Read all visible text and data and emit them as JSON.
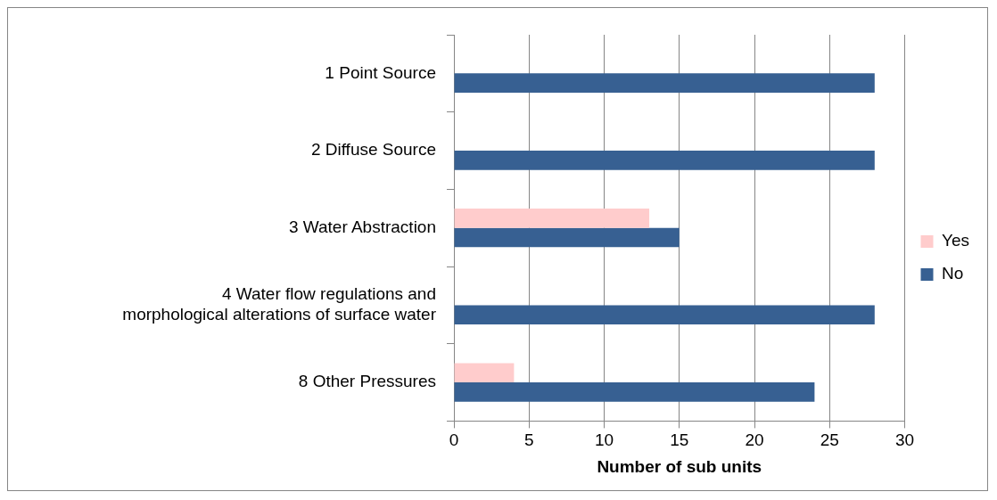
{
  "chart_data": {
    "type": "bar",
    "orientation": "horizontal",
    "xlabel": "Number of sub units",
    "categories": [
      "1 Point Source",
      "2 Diffuse Source",
      "3 Water Abstraction",
      "4 Water flow regulations and morphological alterations of surface water",
      "8 Other Pressures"
    ],
    "series": [
      {
        "name": "Yes",
        "color": "#ffcccc",
        "values": [
          0,
          0,
          13,
          0,
          4
        ]
      },
      {
        "name": "No",
        "color": "#376092",
        "values": [
          28,
          28,
          15,
          28,
          24
        ]
      }
    ],
    "xlim": [
      0,
      30
    ],
    "xticks": [
      0,
      5,
      10,
      15,
      20,
      25,
      30
    ],
    "grid": "x",
    "legend": "right"
  }
}
